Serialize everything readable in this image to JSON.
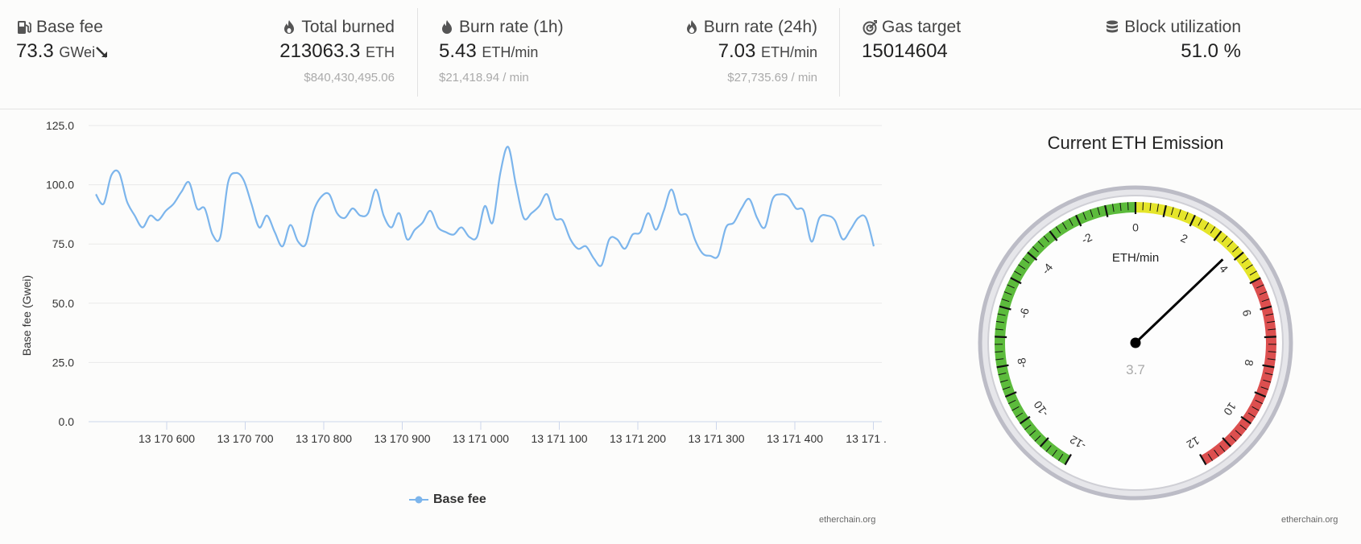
{
  "stats": {
    "base_fee": {
      "label": "Base fee",
      "value": "73.3",
      "unit": "GWei",
      "trend": "down"
    },
    "total_burned": {
      "label": "Total burned",
      "value": "213063.3",
      "unit": "ETH",
      "sub": "$840,430,495.06"
    },
    "burn_rate_1h": {
      "label": "Burn rate (1h)",
      "value": "5.43",
      "unit": "ETH/min",
      "sub": "$21,418.94 / min"
    },
    "burn_rate_24h": {
      "label": "Burn rate (24h)",
      "value": "7.03",
      "unit": "ETH/min",
      "sub": "$27,735.69 / min"
    },
    "gas_target": {
      "label": "Gas target",
      "value": "15014604"
    },
    "block_utilization": {
      "label": "Block utilization",
      "value": "51.0 %"
    }
  },
  "chart_data": {
    "type": "line",
    "ylabel": "Base fee (Gwei)",
    "ylim": [
      0,
      125
    ],
    "yticks": [
      "0.0",
      "25.0",
      "50.0",
      "75.0",
      "100.0",
      "125.0"
    ],
    "xticks": [
      "13 170 600",
      "13 170 700",
      "13 170 800",
      "13 170 900",
      "13 171 000",
      "13 171 100",
      "13 171 200",
      "13 171 300",
      "13 171 400",
      "13 171 ..."
    ],
    "series": [
      {
        "name": "Base fee",
        "color": "#7cb5ec",
        "values": [
          96,
          92,
          104,
          105,
          93,
          87,
          82,
          87,
          85,
          89,
          92,
          97,
          101,
          90,
          90,
          79,
          78,
          101,
          105,
          102,
          92,
          82,
          87,
          80,
          74,
          83,
          76,
          75,
          89,
          95,
          96,
          88,
          86,
          90,
          87,
          88,
          98,
          87,
          82,
          88,
          77,
          81,
          84,
          89,
          82,
          80,
          79,
          82,
          78,
          78,
          91,
          84,
          105,
          116,
          100,
          86,
          88,
          91,
          96,
          86,
          85,
          77,
          73,
          74,
          69,
          66,
          77,
          77,
          73,
          79,
          80,
          88,
          81,
          89,
          98,
          88,
          87,
          77,
          71,
          70,
          70,
          82,
          84,
          90,
          94,
          86,
          82,
          94,
          96,
          95,
          90,
          89,
          76,
          86,
          87,
          85,
          77,
          81,
          86,
          86,
          74
        ]
      }
    ]
  },
  "chart_credit": "etherchain.org",
  "gauge": {
    "title": "Current ETH Emission",
    "unit": "ETH/min",
    "value": 3.7,
    "value_label": "3.7",
    "min": -12,
    "max": 12,
    "labels": [
      "-12",
      "-10",
      "-8",
      "-6",
      "-4",
      "-2",
      "0",
      "2",
      "4",
      "6",
      "8",
      "10",
      "12"
    ],
    "bands": [
      {
        "from": -12,
        "to": 0,
        "color": "#5cbb3c"
      },
      {
        "from": 0,
        "to": 5,
        "color": "#e5e52a"
      },
      {
        "from": 5,
        "to": 12,
        "color": "#dc4f4f"
      }
    ],
    "credit": "etherchain.org"
  }
}
